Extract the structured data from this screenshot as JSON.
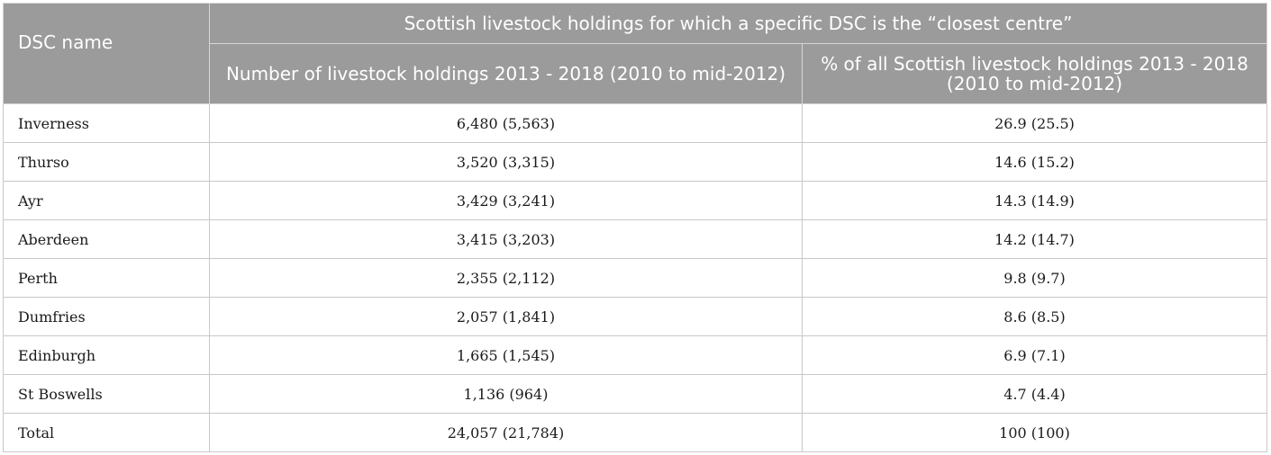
{
  "table": {
    "headers": {
      "dsc_name": "DSC name",
      "group": "Scottish livestock holdings for which a specific DSC is the “closest centre”",
      "holdings": "Number of livestock holdings 2013 - 2018 (2010 to mid-2012)",
      "percent": "% of all Scottish livestock holdings 2013 - 2018 (2010 to mid-2012)"
    },
    "rows": [
      {
        "name": "Inverness",
        "holdings": "6,480 (5,563)",
        "percent": "26.9 (25.5)"
      },
      {
        "name": "Thurso",
        "holdings": "3,520 (3,315)",
        "percent": "14.6 (15.2)"
      },
      {
        "name": "Ayr",
        "holdings": "3,429 (3,241)",
        "percent": "14.3 (14.9)"
      },
      {
        "name": "Aberdeen",
        "holdings": "3,415 (3,203)",
        "percent": "14.2 (14.7)"
      },
      {
        "name": "Perth",
        "holdings": "2,355 (2,112)",
        "percent": "9.8 (9.7)"
      },
      {
        "name": "Dumfries",
        "holdings": "2,057 (1,841)",
        "percent": "8.6 (8.5)"
      },
      {
        "name": "Edinburgh",
        "holdings": "1,665 (1,545)",
        "percent": "6.9 (7.1)"
      },
      {
        "name": "St Boswells",
        "holdings": "1,136 (964)",
        "percent": "4.7 (4.4)"
      },
      {
        "name": "Total",
        "holdings": "24,057 (21,784)",
        "percent": "100 (100)"
      }
    ]
  },
  "colors": {
    "header_bg": "#9b9b9b",
    "header_text": "#ffffff",
    "border": "#c8c8c8"
  }
}
